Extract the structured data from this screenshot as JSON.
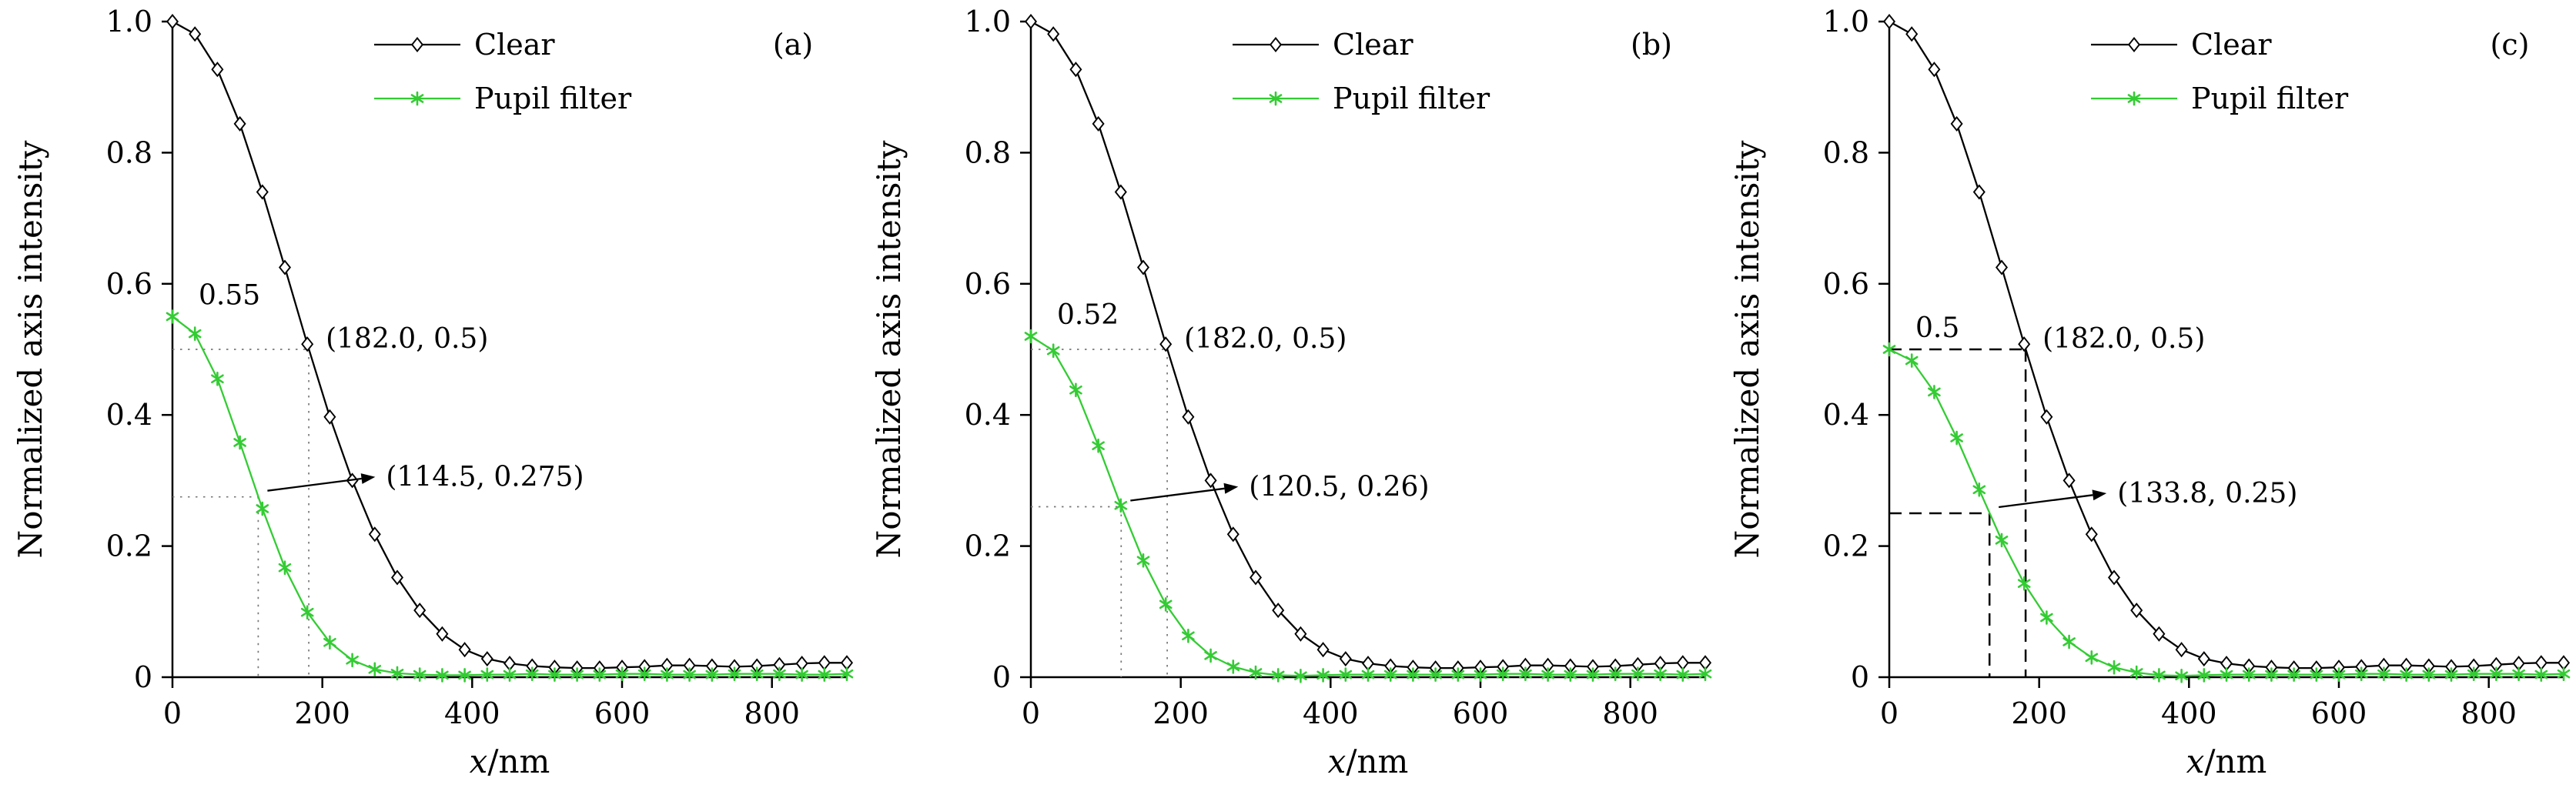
{
  "figure_title": "",
  "chart_data": [
    {
      "type": "line",
      "panel_label": "(a)",
      "xlabel_italic": "x",
      "xlabel_rest": "/nm",
      "ylabel": "Normalized axis intensity",
      "xlim": [
        0,
        900
      ],
      "ylim": [
        0,
        1.0
      ],
      "x_ticks": [
        0,
        200,
        400,
        600,
        800
      ],
      "x_tick_labels": [
        "0",
        "200",
        "400",
        "600",
        "800"
      ],
      "y_ticks": [
        0,
        0.2,
        0.4,
        0.6,
        0.8,
        1.0
      ],
      "y_tick_labels": [
        "0",
        "0.2",
        "0.4",
        "0.6",
        "0.8",
        "1.0"
      ],
      "grid": false,
      "legend_position": "top-center",
      "x": [
        0,
        30,
        60,
        90,
        120,
        150,
        180,
        210,
        240,
        270,
        300,
        330,
        360,
        390,
        420,
        450,
        480,
        510,
        540,
        570,
        600,
        630,
        660,
        690,
        720,
        750,
        780,
        810,
        840,
        870,
        900
      ],
      "series": [
        {
          "name": "Clear",
          "color": "#000000",
          "marker": "diamond",
          "values": [
            1.0,
            0.981,
            0.927,
            0.844,
            0.74,
            0.625,
            0.508,
            0.397,
            0.3,
            0.218,
            0.152,
            0.102,
            0.066,
            0.042,
            0.028,
            0.021,
            0.017,
            0.015,
            0.014,
            0.014,
            0.015,
            0.016,
            0.018,
            0.018,
            0.017,
            0.016,
            0.017,
            0.019,
            0.021,
            0.022,
            0.022
          ]
        },
        {
          "name": "Pupil filter",
          "color": "#33cc33",
          "marker": "asterisk",
          "values": [
            0.55,
            0.524,
            0.455,
            0.358,
            0.257,
            0.167,
            0.099,
            0.053,
            0.026,
            0.012,
            0.006,
            0.004,
            0.003,
            0.003,
            0.004,
            0.004,
            0.005,
            0.004,
            0.004,
            0.004,
            0.005,
            0.005,
            0.004,
            0.004,
            0.004,
            0.005,
            0.005,
            0.005,
            0.004,
            0.004,
            0.005
          ]
        }
      ],
      "annotations": {
        "peak_label": "0.55",
        "clear_point": {
          "x": 182.0,
          "y": 0.5,
          "label": "(182.0, 0.5)"
        },
        "filter_point": {
          "x": 114.5,
          "y": 0.275,
          "label": "(114.5, 0.275)"
        },
        "guide_style": "dotted"
      }
    },
    {
      "type": "line",
      "panel_label": "(b)",
      "xlabel_italic": "x",
      "xlabel_rest": "/nm",
      "ylabel": "Normalized axis intensity",
      "xlim": [
        0,
        900
      ],
      "ylim": [
        0,
        1.0
      ],
      "x_ticks": [
        0,
        200,
        400,
        600,
        800
      ],
      "x_tick_labels": [
        "0",
        "200",
        "400",
        "600",
        "800"
      ],
      "y_ticks": [
        0,
        0.2,
        0.4,
        0.6,
        0.8,
        1.0
      ],
      "y_tick_labels": [
        "0",
        "0.2",
        "0.4",
        "0.6",
        "0.8",
        "1.0"
      ],
      "grid": false,
      "legend_position": "top-center",
      "x": [
        0,
        30,
        60,
        90,
        120,
        150,
        180,
        210,
        240,
        270,
        300,
        330,
        360,
        390,
        420,
        450,
        480,
        510,
        540,
        570,
        600,
        630,
        660,
        690,
        720,
        750,
        780,
        810,
        840,
        870,
        900
      ],
      "series": [
        {
          "name": "Clear",
          "color": "#000000",
          "marker": "diamond",
          "values": [
            1.0,
            0.981,
            0.927,
            0.844,
            0.74,
            0.625,
            0.508,
            0.397,
            0.3,
            0.218,
            0.152,
            0.102,
            0.066,
            0.042,
            0.028,
            0.021,
            0.017,
            0.015,
            0.014,
            0.014,
            0.015,
            0.016,
            0.018,
            0.018,
            0.017,
            0.016,
            0.017,
            0.019,
            0.021,
            0.022,
            0.022
          ]
        },
        {
          "name": "Pupil filter",
          "color": "#33cc33",
          "marker": "asterisk",
          "values": [
            0.52,
            0.498,
            0.438,
            0.353,
            0.262,
            0.178,
            0.111,
            0.063,
            0.033,
            0.016,
            0.007,
            0.003,
            0.002,
            0.003,
            0.004,
            0.004,
            0.004,
            0.004,
            0.004,
            0.004,
            0.004,
            0.005,
            0.005,
            0.004,
            0.004,
            0.004,
            0.005,
            0.005,
            0.005,
            0.004,
            0.005
          ]
        }
      ],
      "annotations": {
        "peak_label": "0.52",
        "clear_point": {
          "x": 182.0,
          "y": 0.5,
          "label": "(182.0, 0.5)"
        },
        "filter_point": {
          "x": 120.5,
          "y": 0.26,
          "label": "(120.5, 0.26)"
        },
        "guide_style": "dotted"
      }
    },
    {
      "type": "line",
      "panel_label": "(c)",
      "xlabel_italic": "x",
      "xlabel_rest": "/nm",
      "ylabel": "Normalized axis intensity",
      "xlim": [
        0,
        900
      ],
      "ylim": [
        0,
        1.0
      ],
      "x_ticks": [
        0,
        200,
        400,
        600,
        800
      ],
      "x_tick_labels": [
        "0",
        "200",
        "400",
        "600",
        "800"
      ],
      "y_ticks": [
        0,
        0.2,
        0.4,
        0.6,
        0.8,
        1.0
      ],
      "y_tick_labels": [
        "0",
        "0.2",
        "0.4",
        "0.6",
        "0.8",
        "1.0"
      ],
      "grid": false,
      "legend_position": "top-center",
      "x": [
        0,
        30,
        60,
        90,
        120,
        150,
        180,
        210,
        240,
        270,
        300,
        330,
        360,
        390,
        420,
        450,
        480,
        510,
        540,
        570,
        600,
        630,
        660,
        690,
        720,
        750,
        780,
        810,
        840,
        870,
        900
      ],
      "series": [
        {
          "name": "Clear",
          "color": "#000000",
          "marker": "diamond",
          "values": [
            1.0,
            0.981,
            0.927,
            0.844,
            0.74,
            0.625,
            0.508,
            0.397,
            0.3,
            0.218,
            0.152,
            0.102,
            0.066,
            0.042,
            0.028,
            0.021,
            0.017,
            0.015,
            0.014,
            0.014,
            0.015,
            0.016,
            0.018,
            0.018,
            0.017,
            0.016,
            0.017,
            0.019,
            0.021,
            0.022,
            0.022
          ]
        },
        {
          "name": "Pupil filter",
          "color": "#33cc33",
          "marker": "asterisk",
          "values": [
            0.5,
            0.483,
            0.435,
            0.365,
            0.286,
            0.209,
            0.143,
            0.091,
            0.054,
            0.03,
            0.015,
            0.007,
            0.003,
            0.002,
            0.003,
            0.004,
            0.004,
            0.004,
            0.004,
            0.004,
            0.004,
            0.005,
            0.005,
            0.004,
            0.004,
            0.004,
            0.005,
            0.005,
            0.005,
            0.004,
            0.005
          ]
        }
      ],
      "annotations": {
        "peak_label": "0.5",
        "clear_point": {
          "x": 182.0,
          "y": 0.5,
          "label": "(182.0, 0.5)"
        },
        "filter_point": {
          "x": 133.8,
          "y": 0.25,
          "label": "(133.8, 0.25)"
        },
        "guide_style": "dashed"
      }
    }
  ],
  "colors": {
    "clear_series": "#000000",
    "pupil_series": "#33cc33",
    "dotted_guide": "#777777",
    "dashed_guide": "#000000",
    "background": "#ffffff"
  }
}
